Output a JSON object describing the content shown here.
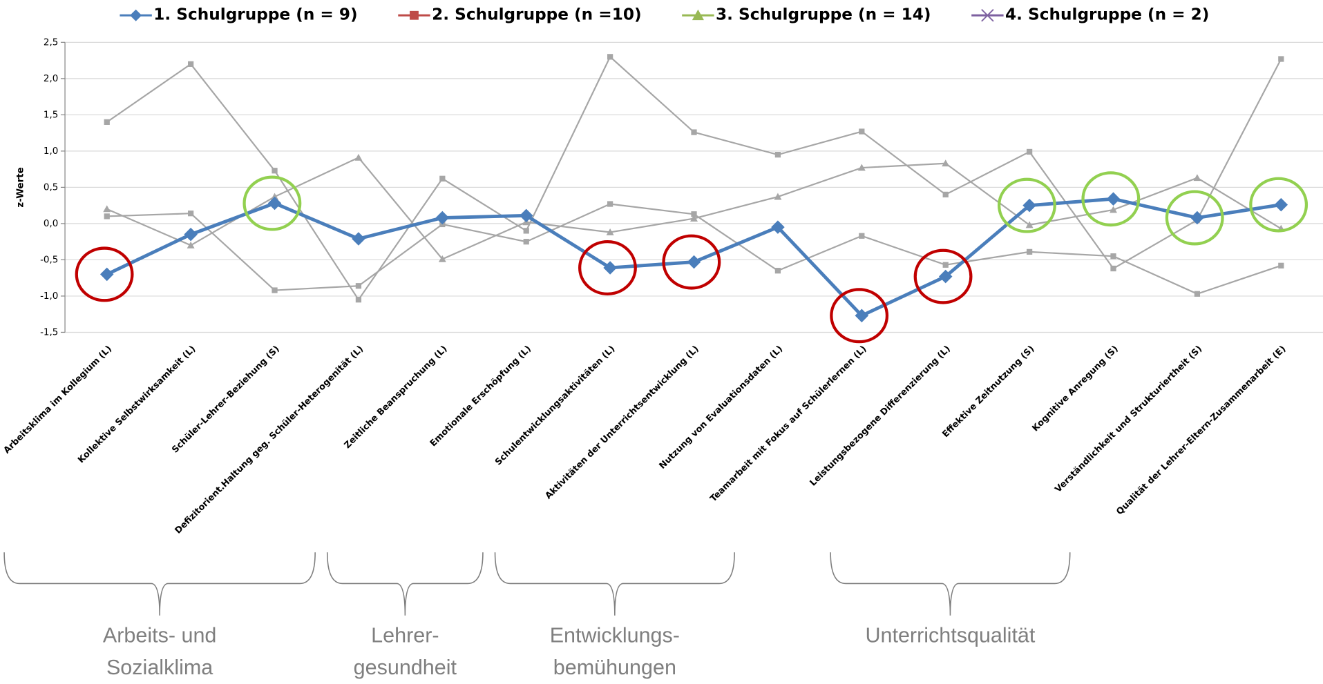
{
  "chart_data": {
    "type": "line",
    "y_label": "z-Werte",
    "categories": [
      "Arbeitsklima  im Kollegium (L)",
      "Kollektive Selbstwirksamkeit (L)",
      "Schüler-Lehrer-Beziehung (S)",
      "Defizitorient.Haltung geg. Schüler-Heterogenität (L)",
      "Zeitliche  Beanspruchung (L)",
      "Emotionale  Erschöpfung (L)",
      "Schulentwicklungsaktivitäten (L)",
      "Aktivitäten der Unterrichtsentwicklung (L)",
      "Nutzung von Evaluationsdaten (L)",
      "Teamarbeit mit Fokus auf Schülerlernen (L)",
      "Leistungsbezogene Differenzierung (L)",
      "Effektive Zeitnutzung (S)",
      "Kognitive Anregung (S)",
      "Verständlichkeit und Strukturiertheit (S)",
      "Qualität der Lehrer-Eltern-Zusammenarbeit (E)"
    ],
    "series": [
      {
        "name": "1. Schulgruppe (n = 9)",
        "color": "#4a7ebb",
        "line_color": "#4a7ebb",
        "marker": "diamond",
        "line_marker": "diamond",
        "values": [
          -0.7,
          -0.15,
          0.28,
          -0.21,
          0.08,
          0.11,
          -0.61,
          -0.53,
          -0.05,
          -1.27,
          -0.73,
          0.25,
          0.34,
          0.08,
          0.26
        ]
      },
      {
        "name": "2. Schulgruppe (n =10)",
        "color": "#be4b48",
        "line_color": "#a6a6a6",
        "marker": "square",
        "line_marker": "square",
        "values": [
          1.4,
          2.2,
          0.73,
          -1.05,
          0.62,
          -0.1,
          2.3,
          1.26,
          0.95,
          1.27,
          0.4,
          0.99,
          -0.62,
          0.05,
          2.27
        ]
      },
      {
        "name": "3. Schulgruppe (n = 14)",
        "color": "#98b954",
        "line_color": "#a6a6a6",
        "marker": "triangle",
        "line_marker": "triangle",
        "values": [
          0.2,
          -0.3,
          0.37,
          0.91,
          -0.49,
          0.02,
          -0.12,
          0.07,
          0.37,
          0.77,
          0.83,
          -0.02,
          0.19,
          0.63,
          -0.07
        ]
      },
      {
        "name": "4. Schulgruppe (n = 2)",
        "color": "#7d60a0",
        "line_color": "#a6a6a6",
        "marker": "x",
        "line_marker": "square",
        "values": [
          0.1,
          0.14,
          -0.92,
          -0.86,
          -0.01,
          -0.25,
          0.27,
          0.13,
          -0.65,
          -0.17,
          -0.57,
          -0.39,
          -0.45,
          -0.97,
          -0.58
        ]
      }
    ],
    "ylim": [
      -1.5,
      2.5
    ],
    "yticks": [
      {
        "value": -1.5,
        "label": "-1,5"
      },
      {
        "value": -1,
        "label": "-1,0"
      },
      {
        "value": -0.5,
        "label": "-0,5"
      },
      {
        "value": 0,
        "label": "0,0"
      },
      {
        "value": 0.5,
        "label": "0,5"
      },
      {
        "value": 1,
        "label": "1,0"
      },
      {
        "value": 1.5,
        "label": "1,5"
      },
      {
        "value": 2,
        "label": "2,0"
      },
      {
        "value": 2.5,
        "label": "2,5"
      }
    ],
    "grid": true,
    "legend": "top",
    "highlights": [
      {
        "color": "#c00000",
        "indices": [
          0,
          6,
          7,
          9,
          10
        ]
      },
      {
        "color": "#92d050",
        "indices": [
          2,
          11,
          12,
          13,
          14
        ]
      }
    ],
    "groups": [
      {
        "lines": [
          "Arbeits- und",
          "Sozialklima"
        ],
        "from": 0,
        "to": 2
      },
      {
        "lines": [
          "Lehrer-",
          "gesundheit"
        ],
        "from": 3,
        "to": 4
      },
      {
        "lines": [
          "Entwicklungs-",
          "bemühungen"
        ],
        "from": 5,
        "to": 7
      },
      {
        "lines": [
          "Unterrichtsqualität"
        ],
        "from": 9,
        "to": 11
      }
    ]
  }
}
